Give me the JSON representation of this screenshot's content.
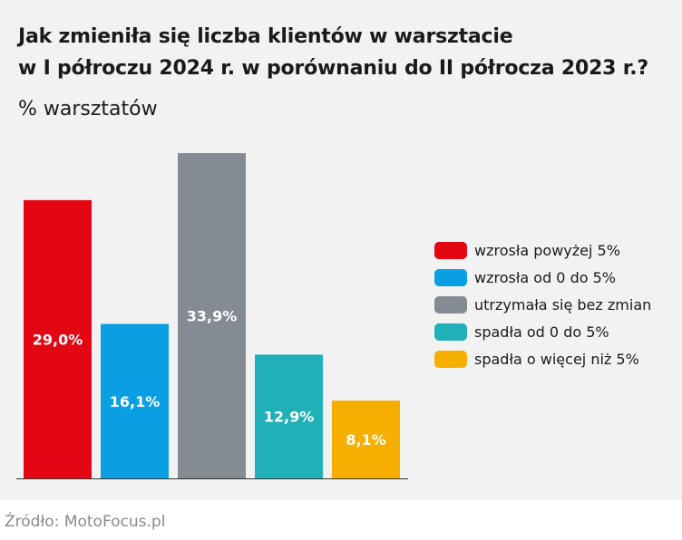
{
  "title_lines": [
    "Jak zmieniła się liczba klientów w warsztacie",
    "w I półroczu 2024 r. w porównaniu do II półrocza 2023 r.?"
  ],
  "subtitle": "% warsztatów",
  "source": "Źródło: MotoFocus.pl",
  "chart_data": {
    "type": "bar",
    "title": "Jak zmieniła się liczba klientów w warsztacie w I półroczu 2024 r. w porównaniu do II półrocza 2023 r.?",
    "ylabel": "% warsztatów",
    "categories": [
      "wzrosła powyżej 5%",
      "wzrosła od 0 do 5%",
      "utrzymała się bez zmian",
      "spadła od 0 do 5%",
      "spadła o więcej niż 5%"
    ],
    "values": [
      29.0,
      16.1,
      33.9,
      12.9,
      8.1
    ],
    "value_labels": [
      "29,0%",
      "16,1%",
      "33,9%",
      "12,9%",
      "8,1%"
    ],
    "colors": [
      "#e30613",
      "#0a9ee3",
      "#848b93",
      "#20b0b8",
      "#f6ae00"
    ],
    "ylim": [
      0,
      33.9
    ],
    "grid": false,
    "legend_position": "right"
  }
}
